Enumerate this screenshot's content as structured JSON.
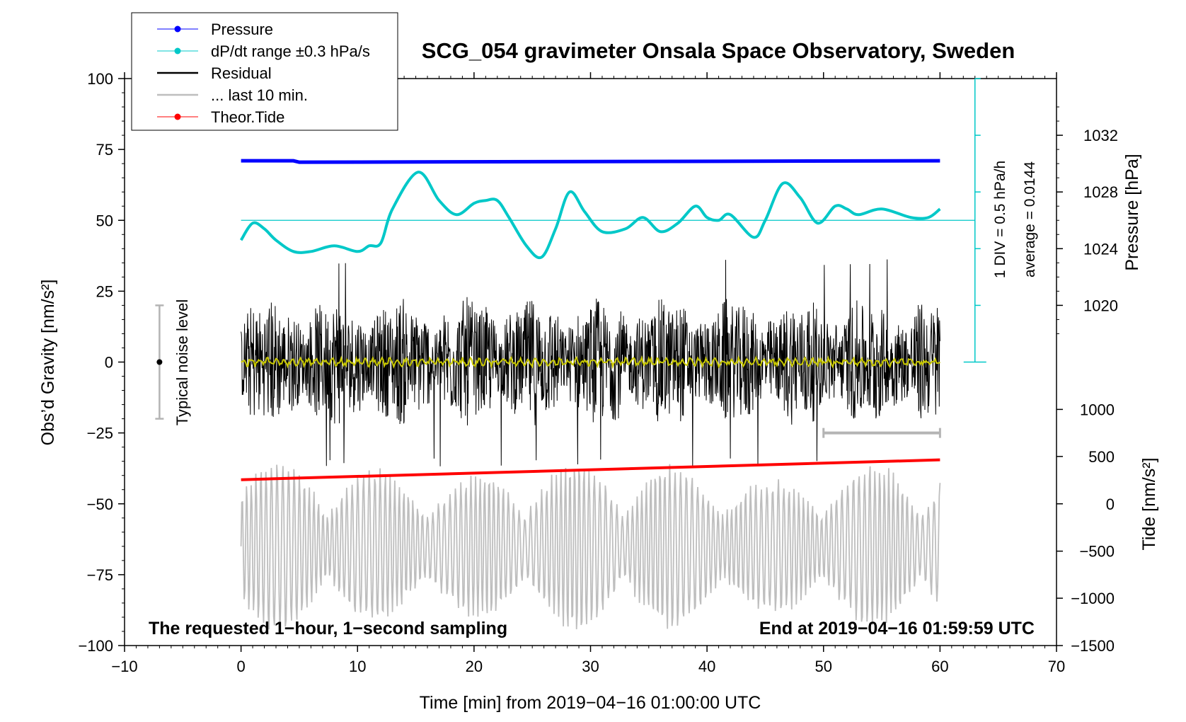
{
  "chart_data": {
    "type": "line",
    "title": "SCG_054 gravimeter Onsala Space Observatory, Sweden",
    "xlabel": "Time [min] from 2019−04−16 01:00:00 UTC",
    "ylabel_left": "Obs’d Gravity [nm/s²]",
    "ylabel_right_top": "Pressure [hPa]",
    "ylabel_right_bottom": "Tide [nm/s²]",
    "xlim": [
      -10,
      70
    ],
    "ylim": [
      -100,
      100
    ],
    "x_ticks": [
      -10,
      0,
      10,
      20,
      30,
      40,
      50,
      60,
      70
    ],
    "x_tick_labels": [
      "−10",
      "0",
      "10",
      "20",
      "30",
      "40",
      "50",
      "60",
      "70"
    ],
    "y_ticks": [
      100,
      75,
      50,
      25,
      0,
      -25,
      -50,
      -75,
      -100
    ],
    "y_tick_labels": [
      "100",
      "75",
      "50",
      "25",
      "0",
      "−25",
      "−50",
      "−75",
      "−100"
    ],
    "pressure_axis": {
      "ticks": [
        1032,
        1028,
        1024,
        1020
      ],
      "tick_labels": [
        "1032",
        "1028",
        "1024",
        "1020"
      ],
      "gravity_equiv": [
        80,
        60,
        40,
        20
      ]
    },
    "tide_axis": {
      "ticks": [
        1000,
        500,
        0,
        -500,
        -1000,
        -1500
      ],
      "tick_labels": [
        "1000",
        "500",
        "0",
        "−500",
        "−1000",
        "−1500"
      ],
      "gravity_equiv": [
        -16.7,
        -33.3,
        -50,
        -66.7,
        -83.3,
        -100
      ]
    },
    "legend": {
      "placement": "top-left",
      "entries": [
        {
          "label": "Pressure",
          "color": "#0000ff",
          "marker": true
        },
        {
          "label": "dP/dt range ±0.3 hPa/s",
          "color": "#00c8c8",
          "marker": true
        },
        {
          "label": "Residual",
          "color": "#000000",
          "marker": false
        },
        {
          "label": "... last 10 min.",
          "color": "#bebebe",
          "marker": false
        },
        {
          "label": "Theor.Tide",
          "color": "#ff0000",
          "marker": true
        }
      ]
    },
    "series": [
      {
        "name": "Pressure",
        "color": "#0000ff",
        "x": [
          0,
          4.5,
          5,
          60
        ],
        "y": [
          71,
          71,
          70.5,
          71
        ]
      },
      {
        "name": "dP/dt",
        "color": "#00c8c8",
        "x": [
          0,
          1,
          2,
          3,
          4.5,
          6,
          8,
          10,
          11,
          12,
          13,
          15.2,
          17,
          18.5,
          20,
          21,
          22,
          23,
          24.5,
          25.8,
          27,
          28.2,
          29.5,
          31,
          33,
          34.5,
          36,
          37.5,
          39,
          40,
          41,
          42,
          44,
          45,
          46.5,
          48,
          49.5,
          51,
          52,
          53,
          55,
          57.5,
          59,
          60
        ],
        "y": [
          43,
          49,
          47,
          43,
          39,
          39,
          41,
          39,
          41,
          42,
          54,
          67,
          57,
          52,
          56,
          57,
          57,
          51,
          41,
          37,
          47,
          60,
          53,
          46,
          47,
          51,
          46,
          49,
          55,
          51,
          50,
          52,
          44,
          50,
          63,
          58,
          49,
          55,
          54,
          52,
          54,
          51,
          51,
          54
        ]
      },
      {
        "name": "dP/dt reference line",
        "color": "#00c8c8",
        "x": [
          0,
          63
        ],
        "y": [
          50,
          50
        ]
      },
      {
        "name": "Residual",
        "color": "#000000",
        "x_range": [
          0,
          60
        ],
        "y_range": [
          -31,
          37
        ]
      },
      {
        "name": "Residual smoothed",
        "color": "#c8c800",
        "x_range": [
          0,
          60
        ],
        "y_center": 0
      },
      {
        "name": "Theor.Tide",
        "color": "#ff0000",
        "x": [
          0,
          60
        ],
        "y": [
          -41.5,
          -34.5
        ]
      },
      {
        "name": "... last 10 min.",
        "color": "#bebebe",
        "x_range": [
          0,
          60
        ],
        "y_range": [
          -97,
          -33
        ]
      }
    ],
    "scale_bar": {
      "label": "1 DIV = 0.5 hPa/h",
      "ticks_gravity": [
        100,
        80,
        60,
        40,
        20,
        0
      ]
    },
    "average_label": "average = 0.0144",
    "noise_bar": {
      "label": "Typical noise level",
      "x": -7,
      "y_low": -20,
      "y_high": 20
    },
    "last10_bar": {
      "x_from": 50,
      "x_to": 60,
      "y": -25
    },
    "annotations": {
      "bottom_left": "The requested 1−hour, 1−second sampling",
      "bottom_right": "End at 2019−04−16 01:59:59 UTC"
    }
  }
}
